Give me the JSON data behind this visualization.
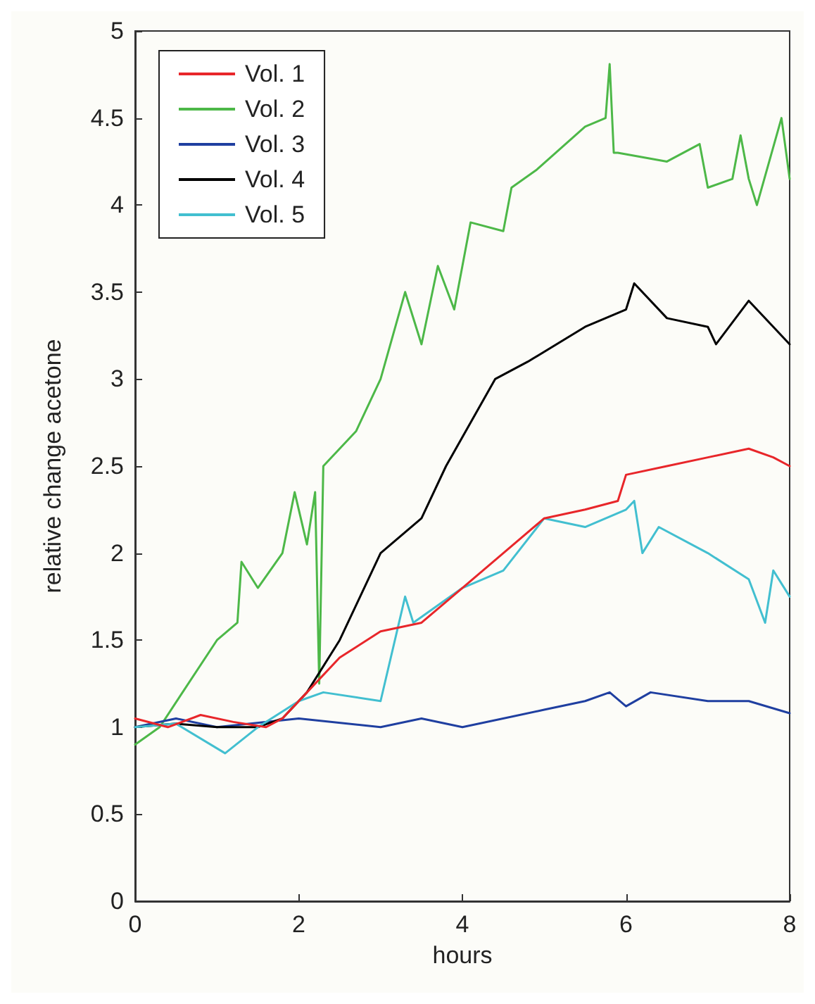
{
  "chart_data": {
    "type": "line",
    "xlabel": "hours",
    "ylabel": "relative change acetone",
    "xlim": [
      0,
      8
    ],
    "ylim": [
      0,
      5
    ],
    "xticks": [
      0,
      2,
      4,
      6,
      8
    ],
    "yticks": [
      0,
      0.5,
      1,
      1.5,
      2,
      2.5,
      3,
      3.5,
      4,
      4.5,
      5
    ],
    "grid": false,
    "legend": "top left",
    "marker": "none",
    "line_style": "solid",
    "series": [
      {
        "name": "Vol. 1",
        "color": "#e8262a",
        "x": [
          0,
          0.4,
          0.8,
          1.2,
          1.6,
          1.8,
          2.1,
          2.5,
          3,
          3.5,
          4,
          4.5,
          5,
          5.5,
          5.9,
          6,
          6.5,
          7,
          7.5,
          7.8,
          8
        ],
        "values": [
          1.05,
          1.0,
          1.07,
          1.03,
          1.0,
          1.05,
          1.2,
          1.4,
          1.55,
          1.6,
          1.8,
          2,
          2.2,
          2.25,
          2.3,
          2.45,
          2.5,
          2.55,
          2.6,
          2.55,
          2.5
        ]
      },
      {
        "name": "Vol. 2",
        "color": "#4db848",
        "x": [
          0,
          0.3,
          1,
          1.25,
          1.3,
          1.5,
          1.8,
          1.95,
          2.1,
          2.2,
          2.25,
          2.3,
          2.7,
          3,
          3.3,
          3.5,
          3.7,
          3.9,
          4.1,
          4.5,
          4.6,
          4.9,
          5.5,
          5.75,
          5.8,
          5.85,
          5.9,
          6.5,
          6.9,
          7,
          7.3,
          7.4,
          7.5,
          7.6,
          7.9,
          8
        ],
        "values": [
          0.9,
          1,
          1.5,
          1.6,
          1.95,
          1.8,
          2,
          2.35,
          2.05,
          2.35,
          1.25,
          2.5,
          2.7,
          3,
          3.5,
          3.2,
          3.65,
          3.4,
          3.9,
          3.85,
          4.1,
          4.2,
          4.45,
          4.5,
          4.81,
          4.3,
          4.3,
          4.25,
          4.35,
          4.1,
          4.15,
          4.4,
          4.15,
          4,
          4.5,
          4.15
        ]
      },
      {
        "name": "Vol. 3",
        "color": "#1f3fa0",
        "x": [
          0,
          0.5,
          1,
          2,
          3,
          3.5,
          4,
          5,
          5.5,
          5.8,
          6,
          6.3,
          7,
          7.5,
          8
        ],
        "values": [
          1,
          1.05,
          1,
          1.05,
          1,
          1.05,
          1,
          1.1,
          1.15,
          1.2,
          1.12,
          1.2,
          1.15,
          1.15,
          1.08
        ]
      },
      {
        "name": "Vol. 4",
        "color": "#000000",
        "x": [
          0,
          0.5,
          1,
          1.5,
          1.8,
          2.1,
          2.5,
          3,
          3.5,
          3.8,
          4.4,
          4.8,
          5.5,
          6,
          6.1,
          6.5,
          7,
          7.1,
          7.5,
          7.8,
          8
        ],
        "values": [
          1,
          1.02,
          1,
          1,
          1.05,
          1.2,
          1.5,
          2,
          2.2,
          2.5,
          3,
          3.1,
          3.3,
          3.4,
          3.55,
          3.35,
          3.3,
          3.2,
          3.45,
          3.3,
          3.2
        ]
      },
      {
        "name": "Vol. 5",
        "color": "#42bfd0",
        "x": [
          0,
          0.5,
          1.1,
          1.5,
          2,
          2.3,
          3,
          3.3,
          3.4,
          3.7,
          4,
          4.5,
          5,
          5.5,
          6,
          6.1,
          6.2,
          6.4,
          7,
          7.5,
          7.7,
          7.8,
          8
        ],
        "values": [
          1,
          1.02,
          0.85,
          1,
          1.15,
          1.2,
          1.15,
          1.75,
          1.6,
          1.7,
          1.8,
          1.9,
          2.2,
          2.15,
          2.25,
          2.3,
          2,
          2.15,
          2,
          1.85,
          1.6,
          1.9,
          1.75
        ]
      }
    ]
  }
}
